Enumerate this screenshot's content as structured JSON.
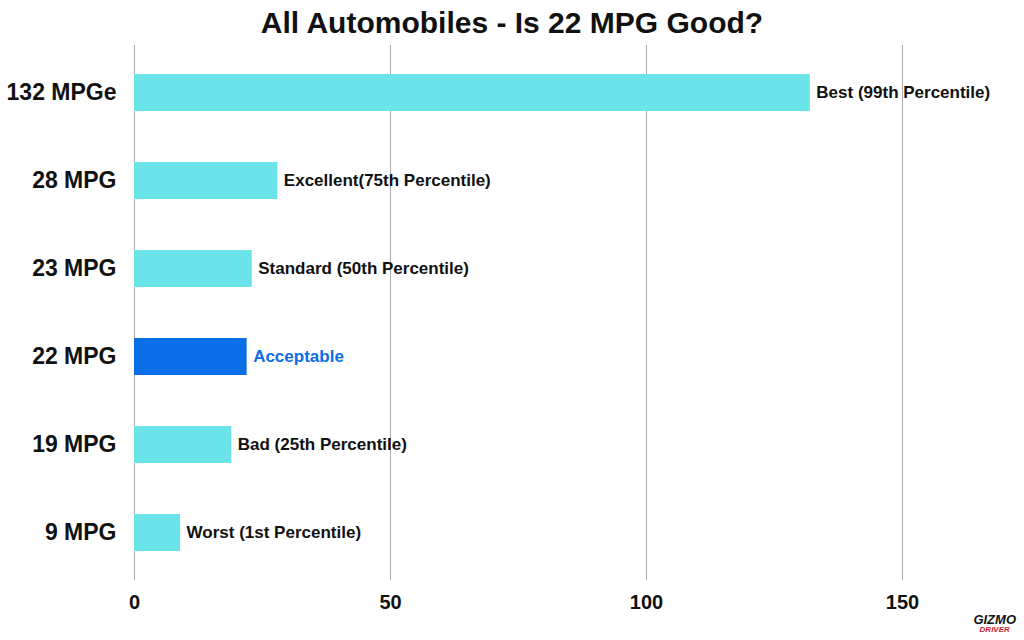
{
  "chart_data": {
    "type": "bar",
    "orientation": "horizontal",
    "title": "All Automobiles - Is 22 MPG Good?",
    "categories": [
      "132 MPGe",
      "28 MPG",
      "23 MPG",
      "22 MPG",
      "19 MPG",
      "9 MPG"
    ],
    "values": [
      132,
      28,
      23,
      22,
      19,
      9
    ],
    "labels": [
      "Best (99th Percentile)",
      "Excellent(75th Percentile)",
      "Standard (50th Percentile)",
      "Acceptable",
      "Bad (25th Percentile)",
      "Worst (1st Percentile)"
    ],
    "colors": [
      "#6ae4e8",
      "#6ae4e8",
      "#6ae4e8",
      "#0a6ee6",
      "#6ae4e8",
      "#6ae4e8"
    ],
    "xlim": [
      0,
      150
    ],
    "xticks": [
      0,
      50,
      100,
      150
    ],
    "grid": true,
    "logo": "GIZMO DRIVER"
  }
}
